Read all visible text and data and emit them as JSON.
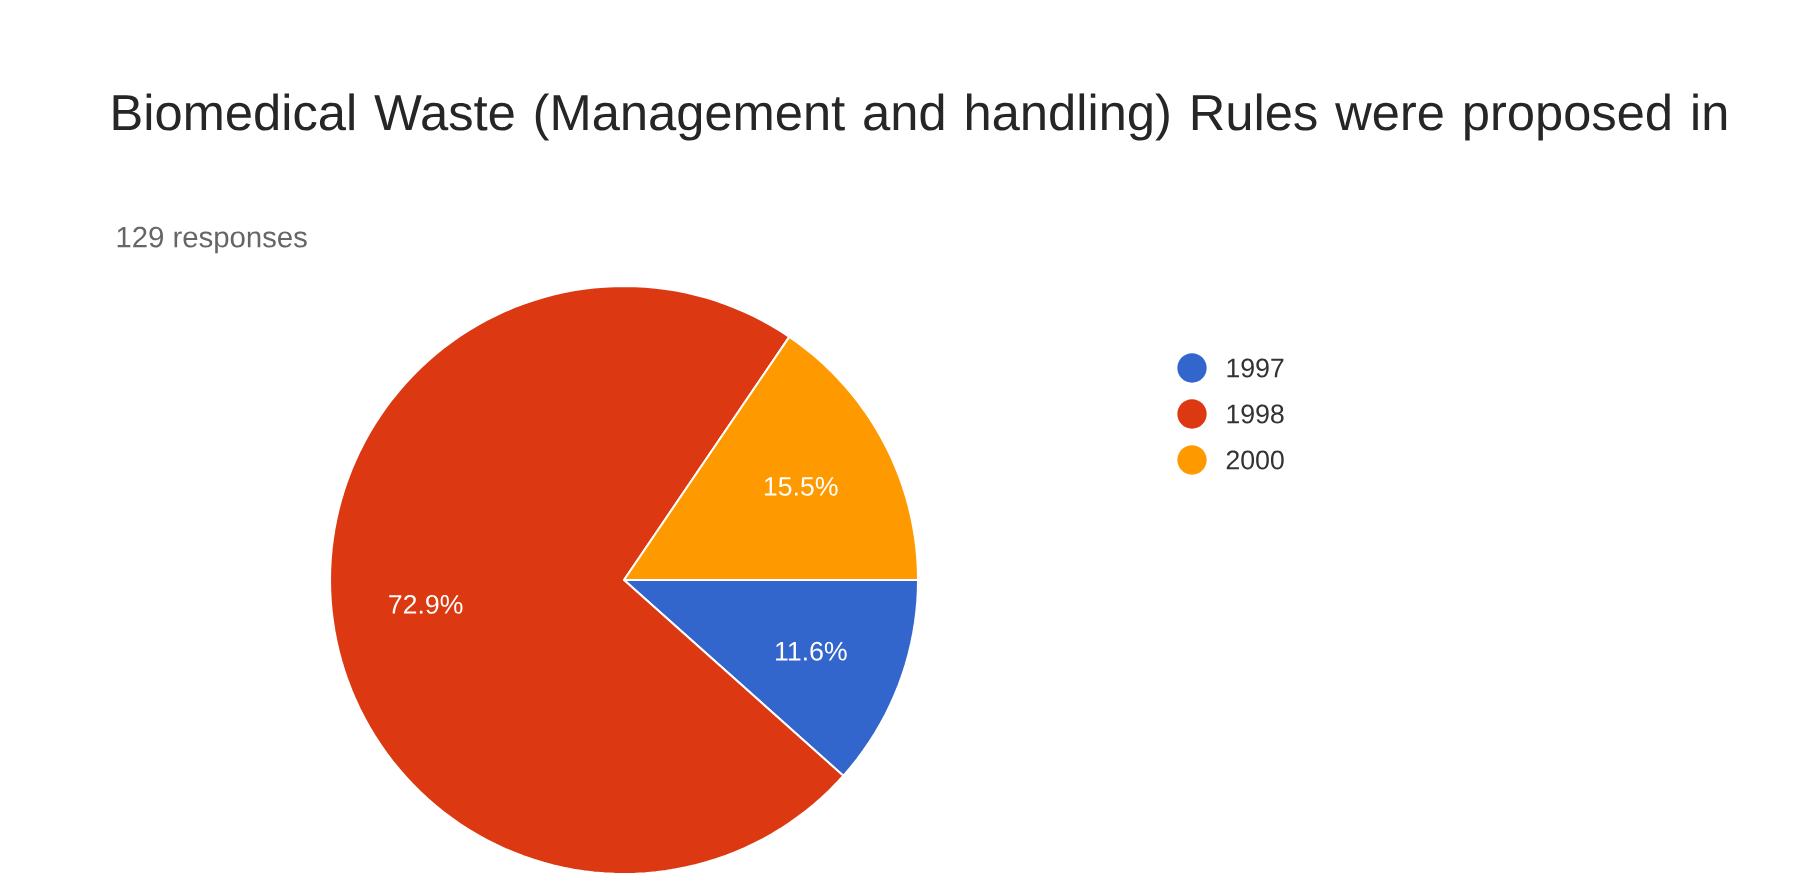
{
  "chart_data": {
    "type": "pie",
    "title": "Biomedical Waste (Management and handling) Rules were proposed in",
    "subtitle": "129 responses",
    "categories": [
      "1997",
      "1998",
      "2000"
    ],
    "values": [
      11.6,
      72.9,
      15.5
    ],
    "colors": [
      "#3366cc",
      "#dc3912",
      "#ff9900"
    ],
    "value_labels": [
      "11.6%",
      "72.9%",
      "15.5%"
    ],
    "legend": "right"
  }
}
